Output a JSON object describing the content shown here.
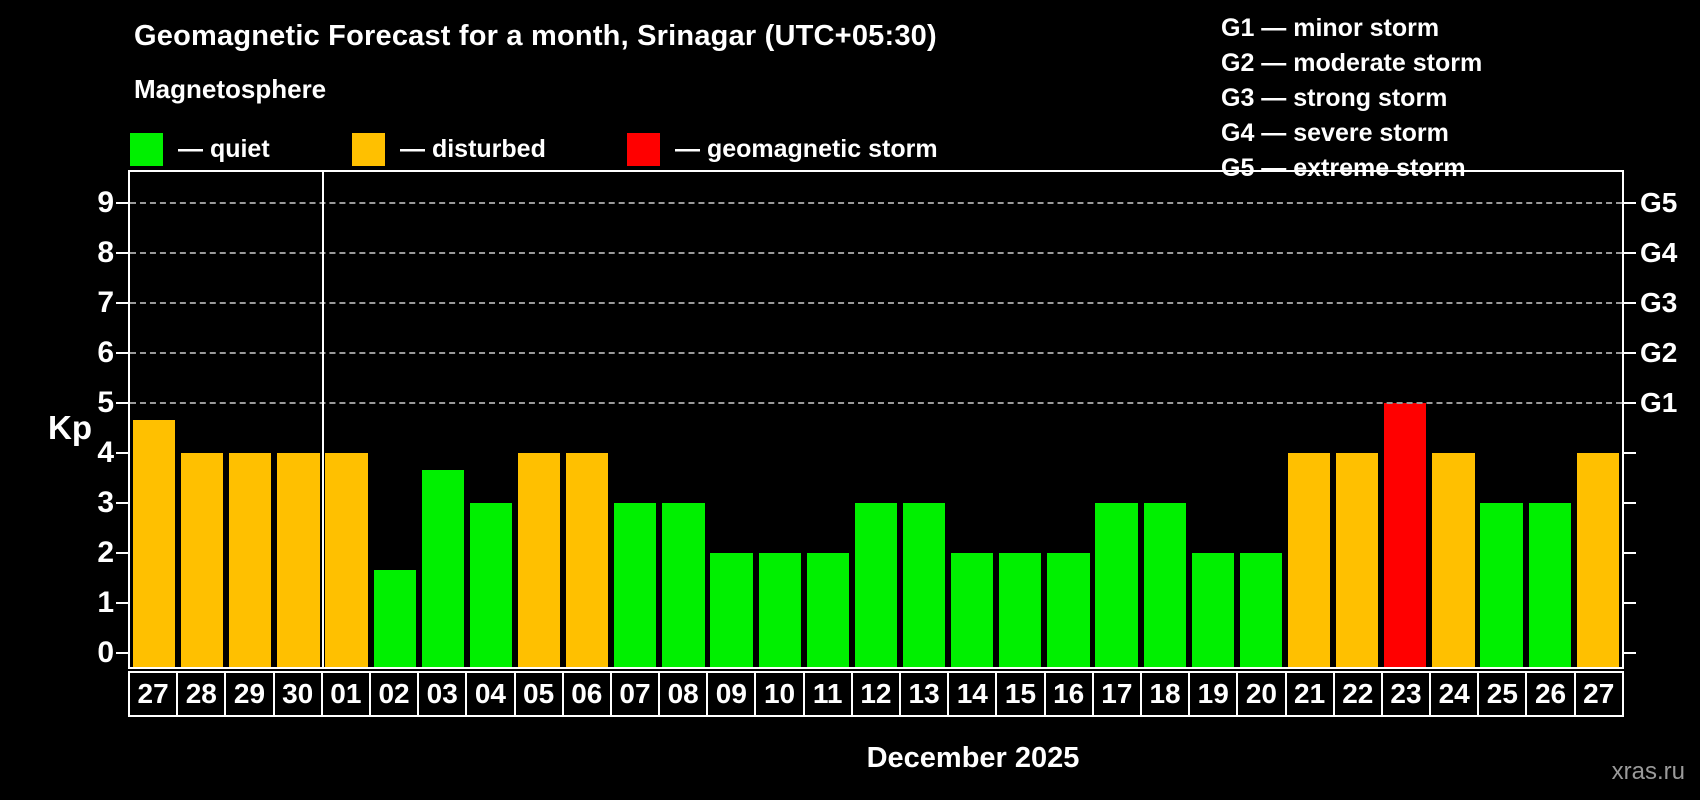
{
  "title": "Geomagnetic Forecast for a month, Srinagar (UTC+05:30)",
  "subtitle": "Magnetosphere",
  "legend": {
    "items": [
      {
        "status": "quiet",
        "label": "— quiet"
      },
      {
        "status": "disturbed",
        "label": "— disturbed"
      },
      {
        "status": "storm",
        "label": "— geomagnetic storm"
      }
    ]
  },
  "g_legend": {
    "items": [
      "G1 — minor storm",
      "G2 — moderate storm",
      "G3 — strong storm",
      "G4 — severe storm",
      "G5 — extreme storm"
    ]
  },
  "colors": {
    "quiet": "#00f000",
    "disturbed": "#ffc000",
    "storm": "#ff0000",
    "background": "#000000",
    "text": "#ffffff",
    "grid": "#9a9a9a",
    "frame": "#ffffff",
    "watermark": "#9a9a9a"
  },
  "watermark": "xras.ru",
  "chart_data": {
    "type": "bar",
    "title": "Geomagnetic Forecast for a month, Srinagar (UTC+05:30)",
    "x_label": "December 2025",
    "y_label": "Kp",
    "ylim": [
      -0.28,
      9.62
    ],
    "y_ticks": [
      0,
      1,
      2,
      3,
      4,
      5,
      6,
      7,
      8,
      9
    ],
    "grid_levels": [
      5,
      6,
      7,
      8,
      9
    ],
    "right_axis": [
      {
        "level": 5,
        "label": "G1"
      },
      {
        "level": 6,
        "label": "G2"
      },
      {
        "level": 7,
        "label": "G3"
      },
      {
        "level": 8,
        "label": "G4"
      },
      {
        "level": 9,
        "label": "G5"
      }
    ],
    "month_boundary_after_index": 3,
    "categories": [
      "27",
      "28",
      "29",
      "30",
      "01",
      "02",
      "03",
      "04",
      "05",
      "06",
      "07",
      "08",
      "09",
      "10",
      "11",
      "12",
      "13",
      "14",
      "15",
      "16",
      "17",
      "18",
      "19",
      "20",
      "21",
      "22",
      "23",
      "24",
      "25",
      "26",
      "27"
    ],
    "values": [
      4.67,
      4,
      4,
      4,
      4,
      1.67,
      3.67,
      3,
      4,
      4,
      3,
      3,
      2,
      2,
      2,
      3,
      3,
      2,
      2,
      2,
      3,
      3,
      2,
      2,
      4,
      4,
      5,
      4,
      3,
      3,
      4
    ],
    "statuses": [
      "disturbed",
      "disturbed",
      "disturbed",
      "disturbed",
      "disturbed",
      "quiet",
      "quiet",
      "quiet",
      "disturbed",
      "disturbed",
      "quiet",
      "quiet",
      "quiet",
      "quiet",
      "quiet",
      "quiet",
      "quiet",
      "quiet",
      "quiet",
      "quiet",
      "quiet",
      "quiet",
      "quiet",
      "quiet",
      "disturbed",
      "disturbed",
      "storm",
      "disturbed",
      "quiet",
      "quiet",
      "disturbed"
    ]
  }
}
